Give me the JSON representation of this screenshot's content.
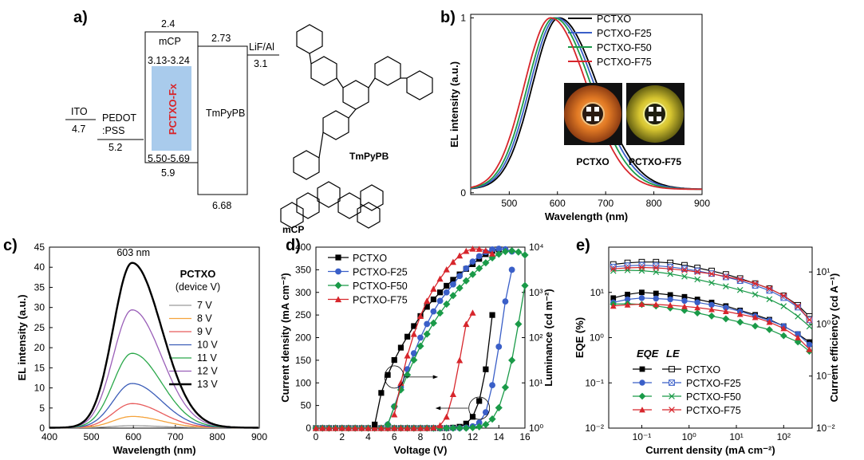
{
  "panel_labels": [
    "a)",
    "b)",
    "c)",
    "d)",
    "e)"
  ],
  "colors": {
    "PCTXO": "#000000",
    "PCTXO-F25": "#3a5fc8",
    "PCTXO-F50": "#1a9a48",
    "PCTXO-F75": "#d7262c",
    "emitter_fill": "#a9cbec",
    "emitter_text": "#d7262c",
    "v7": "#9a9a9a",
    "v8": "#f5a33c",
    "v9": "#e85c5c",
    "v10": "#3b5db8",
    "v11": "#2aa84a",
    "v12": "#9a5fb8",
    "v13": "#000000"
  },
  "energy_diagram": {
    "layers": [
      {
        "name": "ITO",
        "top": "",
        "bottom": "4.7"
      },
      {
        "name": "PEDOT\n:PSS",
        "top": "",
        "bottom": "5.2"
      },
      {
        "name": "mCP",
        "top": "2.4",
        "bottom": "5.9"
      },
      {
        "name": "PCTXO-Fx",
        "top": "3.13-3.24",
        "bottom": "5.50-5.69"
      },
      {
        "name": "TmPyPB",
        "top": "2.73",
        "bottom": "6.68"
      },
      {
        "name": "LiF/Al",
        "top": "",
        "bottom": "3.1"
      }
    ],
    "molecules": [
      "TmPyPB",
      "mCP"
    ]
  },
  "chart_data": [
    {
      "panel": "b",
      "type": "line",
      "xlabel": "Wavelength (nm)",
      "ylabel": "EL intensity (a.u.)",
      "xlim": [
        420,
        900
      ],
      "ylim": [
        0,
        1
      ],
      "xticks": [
        500,
        600,
        700,
        800,
        900
      ],
      "yticks": [
        0,
        1
      ],
      "legend": "top-right",
      "series": [
        {
          "name": "PCTXO",
          "peak": 603,
          "width_left": 55,
          "width_right": 80
        },
        {
          "name": "PCTXO-F25",
          "peak": 598,
          "width_left": 55,
          "width_right": 79
        },
        {
          "name": "PCTXO-F50",
          "peak": 593,
          "width_left": 55,
          "width_right": 77
        },
        {
          "name": "PCTXO-F75",
          "peak": 586,
          "width_left": 55,
          "width_right": 75
        }
      ],
      "photos": [
        "PCTXO",
        "PCTXO-F75"
      ]
    },
    {
      "panel": "c",
      "type": "line",
      "annotation": "603 nm",
      "xlabel": "Wavelength (nm)",
      "ylabel": "EL intensity (a.u.)",
      "xlim": [
        400,
        900
      ],
      "ylim": [
        0,
        45
      ],
      "xticks": [
        400,
        500,
        600,
        700,
        800,
        900
      ],
      "yticks": [
        0,
        5,
        10,
        15,
        20,
        25,
        30,
        35,
        40,
        45
      ],
      "legend_title": "PCTXO",
      "legend_subtitle": "(device V)",
      "series": [
        {
          "name": "7 V",
          "peak_value": 0.5
        },
        {
          "name": "8 V",
          "peak_value": 2.8
        },
        {
          "name": "9 V",
          "peak_value": 6.0
        },
        {
          "name": "10 V",
          "peak_value": 11.0
        },
        {
          "name": "11 V",
          "peak_value": 18.5
        },
        {
          "name": "12 V",
          "peak_value": 29.3
        },
        {
          "name": "13 V",
          "peak_value": 41.0
        }
      ]
    },
    {
      "panel": "d",
      "type": "line",
      "xlabel": "Voltage (V)",
      "ylabel": "Current density (mA cm⁻²)",
      "y2label": "Luminance (cd m⁻²)",
      "xlim": [
        0,
        16
      ],
      "ylim": [
        0,
        400
      ],
      "y2lim": [
        1,
        10000
      ],
      "y2scale": "log",
      "xticks": [
        0,
        2,
        4,
        6,
        8,
        10,
        12,
        14,
        16
      ],
      "yticks": [
        0,
        50,
        100,
        150,
        200,
        250,
        300,
        350,
        400
      ],
      "y2tick_labels": [
        "10⁰",
        "10¹",
        "10²",
        "10³",
        "10⁴"
      ],
      "legend": "top-left",
      "current_density": [
        {
          "name": "PCTXO",
          "x": [
            0,
            0.5,
            1,
            1.5,
            2,
            2.5,
            3,
            3.5,
            4,
            4.5,
            5,
            5.5,
            6,
            6.5,
            7,
            7.5,
            8,
            8.5,
            9,
            9.5,
            10,
            10.5,
            11,
            11.5,
            12,
            12.5,
            13,
            13.5
          ],
          "y": [
            0,
            0,
            0,
            0,
            0,
            0,
            0,
            0,
            0,
            0,
            0,
            0,
            0,
            0,
            0,
            0,
            0,
            0,
            0,
            0,
            0,
            1,
            3,
            10,
            25,
            60,
            130,
            250
          ]
        },
        {
          "name": "PCTXO-F25",
          "x": [
            0,
            0.5,
            1,
            1.5,
            2,
            2.5,
            3,
            3.5,
            4,
            4.5,
            5,
            5.5,
            6,
            6.5,
            7,
            7.5,
            8,
            8.5,
            9,
            9.5,
            10,
            10.5,
            11,
            11.5,
            12,
            12.5,
            13,
            13.5,
            14,
            14.5,
            15
          ],
          "y": [
            0,
            0,
            0,
            0,
            0,
            0,
            0,
            0,
            0,
            0,
            0,
            0,
            0,
            0,
            0,
            0,
            0,
            0,
            0,
            0,
            0,
            0,
            0,
            1,
            4,
            12,
            35,
            95,
            180,
            280,
            350
          ]
        },
        {
          "name": "PCTXO-F50",
          "x": [
            0,
            0.5,
            1,
            1.5,
            2,
            2.5,
            3,
            3.5,
            4,
            4.5,
            5,
            5.5,
            6,
            6.5,
            7,
            7.5,
            8,
            8.5,
            9,
            9.5,
            10,
            10.5,
            11,
            11.5,
            12,
            12.5,
            13,
            13.5,
            14,
            14.5,
            15,
            15.5,
            16
          ],
          "y": [
            0,
            0,
            0,
            0,
            0,
            0,
            0,
            0,
            0,
            0,
            0,
            0,
            0,
            0,
            0,
            0,
            0,
            0,
            0,
            0,
            0,
            0,
            0,
            0,
            1,
            3,
            8,
            20,
            45,
            90,
            150,
            230,
            315
          ]
        },
        {
          "name": "PCTXO-F75",
          "x": [
            0,
            0.5,
            1,
            1.5,
            2,
            2.5,
            3,
            3.5,
            4,
            4.5,
            5,
            5.5,
            6,
            6.5,
            7,
            7.5,
            8,
            8.5,
            9,
            9.5,
            10,
            10.5,
            11,
            11.5,
            12
          ],
          "y": [
            0,
            0,
            0,
            0,
            0,
            0,
            0,
            0,
            0,
            0,
            0,
            0,
            0,
            0,
            0,
            0,
            0,
            0,
            1,
            6,
            25,
            75,
            150,
            230,
            255
          ]
        }
      ],
      "luminance": [
        {
          "name": "PCTXO",
          "x": [
            4.5,
            5,
            5.5,
            6,
            6.5,
            7,
            7.5,
            8,
            8.5,
            9,
            9.5,
            10,
            10.5,
            11,
            11.5,
            12,
            12.5,
            13,
            13.5,
            14
          ],
          "y": [
            1.2,
            6,
            15,
            32,
            60,
            105,
            180,
            300,
            480,
            700,
            1000,
            1400,
            1900,
            2500,
            3300,
            4200,
            5500,
            7000,
            8300,
            8900
          ]
        },
        {
          "name": "PCTXO-F25",
          "x": [
            5.5,
            6,
            6.5,
            7,
            7.5,
            8,
            8.5,
            9,
            9.5,
            10,
            10.5,
            11,
            11.5,
            12,
            12.5,
            13,
            13.5,
            14,
            14.5,
            15
          ],
          "y": [
            1.2,
            3,
            8,
            20,
            45,
            100,
            200,
            380,
            650,
            1000,
            1500,
            2300,
            3400,
            4800,
            6300,
            7800,
            8900,
            9200,
            9000,
            8000
          ]
        },
        {
          "name": "PCTXO-F50",
          "x": [
            5.5,
            6,
            6.5,
            7,
            7.5,
            8,
            8.5,
            9,
            9.5,
            10,
            10.5,
            11,
            11.5,
            12,
            12.5,
            13,
            13.5,
            14,
            14.5,
            15,
            15.5,
            16
          ],
          "y": [
            1.2,
            3,
            7,
            15,
            32,
            65,
            120,
            210,
            350,
            550,
            850,
            1250,
            1800,
            2500,
            3400,
            4500,
            5800,
            7000,
            8000,
            8300,
            7800,
            6700
          ]
        },
        {
          "name": "PCTXO-F75",
          "x": [
            6,
            6.5,
            7,
            7.5,
            8,
            8.5,
            9,
            9.5,
            10,
            10.5,
            11,
            11.5,
            12,
            12.5,
            13,
            13.5
          ],
          "y": [
            2,
            10,
            40,
            120,
            300,
            650,
            1200,
            2000,
            3200,
            4700,
            6500,
            8200,
            9200,
            9100,
            8400,
            7200
          ]
        }
      ]
    },
    {
      "panel": "e",
      "type": "line",
      "xlabel": "Current density (mA cm⁻²)",
      "ylabel": "EQE (%)",
      "y2label": "Current efficiency (cd A⁻¹)",
      "xscale": "log",
      "yscale": "log",
      "y2scale": "log",
      "xlim": [
        0.02,
        400
      ],
      "ylim": [
        0.01,
        100
      ],
      "y2lim": [
        0.01,
        30
      ],
      "xtick_labels": [
        "10⁻¹",
        "10⁰",
        "10¹",
        "10²"
      ],
      "ytick_labels": [
        "10⁻²",
        "10⁻¹",
        "10⁰",
        "10¹"
      ],
      "y2tick_labels": [
        "10⁻²",
        "10⁻¹",
        "10⁰",
        "10¹"
      ],
      "legend_headers": [
        "EQE",
        "LE"
      ],
      "legend": "bottom-center",
      "x": [
        0.025,
        0.05,
        0.1,
        0.2,
        0.4,
        0.8,
        1.5,
        3,
        6,
        12,
        25,
        50,
        100,
        200,
        350
      ],
      "eqe": [
        {
          "name": "PCTXO",
          "y": [
            7.5,
            9.0,
            10.0,
            9.5,
            8.8,
            8.0,
            7.0,
            6.0,
            5.0,
            4.0,
            3.2,
            2.5,
            1.8,
            1.2,
            0.8
          ]
        },
        {
          "name": "PCTXO-F25",
          "y": [
            6.0,
            7.0,
            7.5,
            7.3,
            7.0,
            6.5,
            6.0,
            5.3,
            4.6,
            3.8,
            3.0,
            2.4,
            1.8,
            1.2,
            0.7
          ]
        },
        {
          "name": "PCTXO-F50",
          "y": [
            5.5,
            5.6,
            5.4,
            5.0,
            4.5,
            4.0,
            3.5,
            3.0,
            2.6,
            2.2,
            1.8,
            1.5,
            1.1,
            0.8,
            0.5
          ]
        },
        {
          "name": "PCTXO-F75",
          "y": [
            5.0,
            5.3,
            5.5,
            5.4,
            5.2,
            4.9,
            4.6,
            4.2,
            3.8,
            3.3,
            2.8,
            2.2,
            1.6,
            1.0,
            0.55
          ]
        }
      ],
      "le": [
        {
          "name": "PCTXO",
          "y": [
            14,
            15,
            15.5,
            15.5,
            15,
            13.5,
            12,
            10.5,
            9,
            7.5,
            6,
            4.8,
            3.5,
            2.3,
            1.4
          ]
        },
        {
          "name": "PCTXO-F25",
          "y": [
            12.5,
            13.2,
            13.5,
            13.2,
            12.5,
            11.5,
            10.5,
            9.3,
            8,
            6.8,
            5.5,
            4.4,
            3.2,
            2.1,
            1.2
          ]
        },
        {
          "name": "PCTXO-F50",
          "y": [
            10.5,
            10.8,
            10.6,
            10,
            9.2,
            8.2,
            7.2,
            6.2,
            5.3,
            4.5,
            3.7,
            3.0,
            2.2,
            1.4,
            0.9
          ]
        },
        {
          "name": "PCTXO-F75",
          "y": [
            11.5,
            12,
            12.2,
            12,
            11.5,
            10.8,
            10,
            9.2,
            8.2,
            7.2,
            6,
            4.8,
            3.5,
            2.2,
            1.2
          ]
        }
      ]
    }
  ]
}
